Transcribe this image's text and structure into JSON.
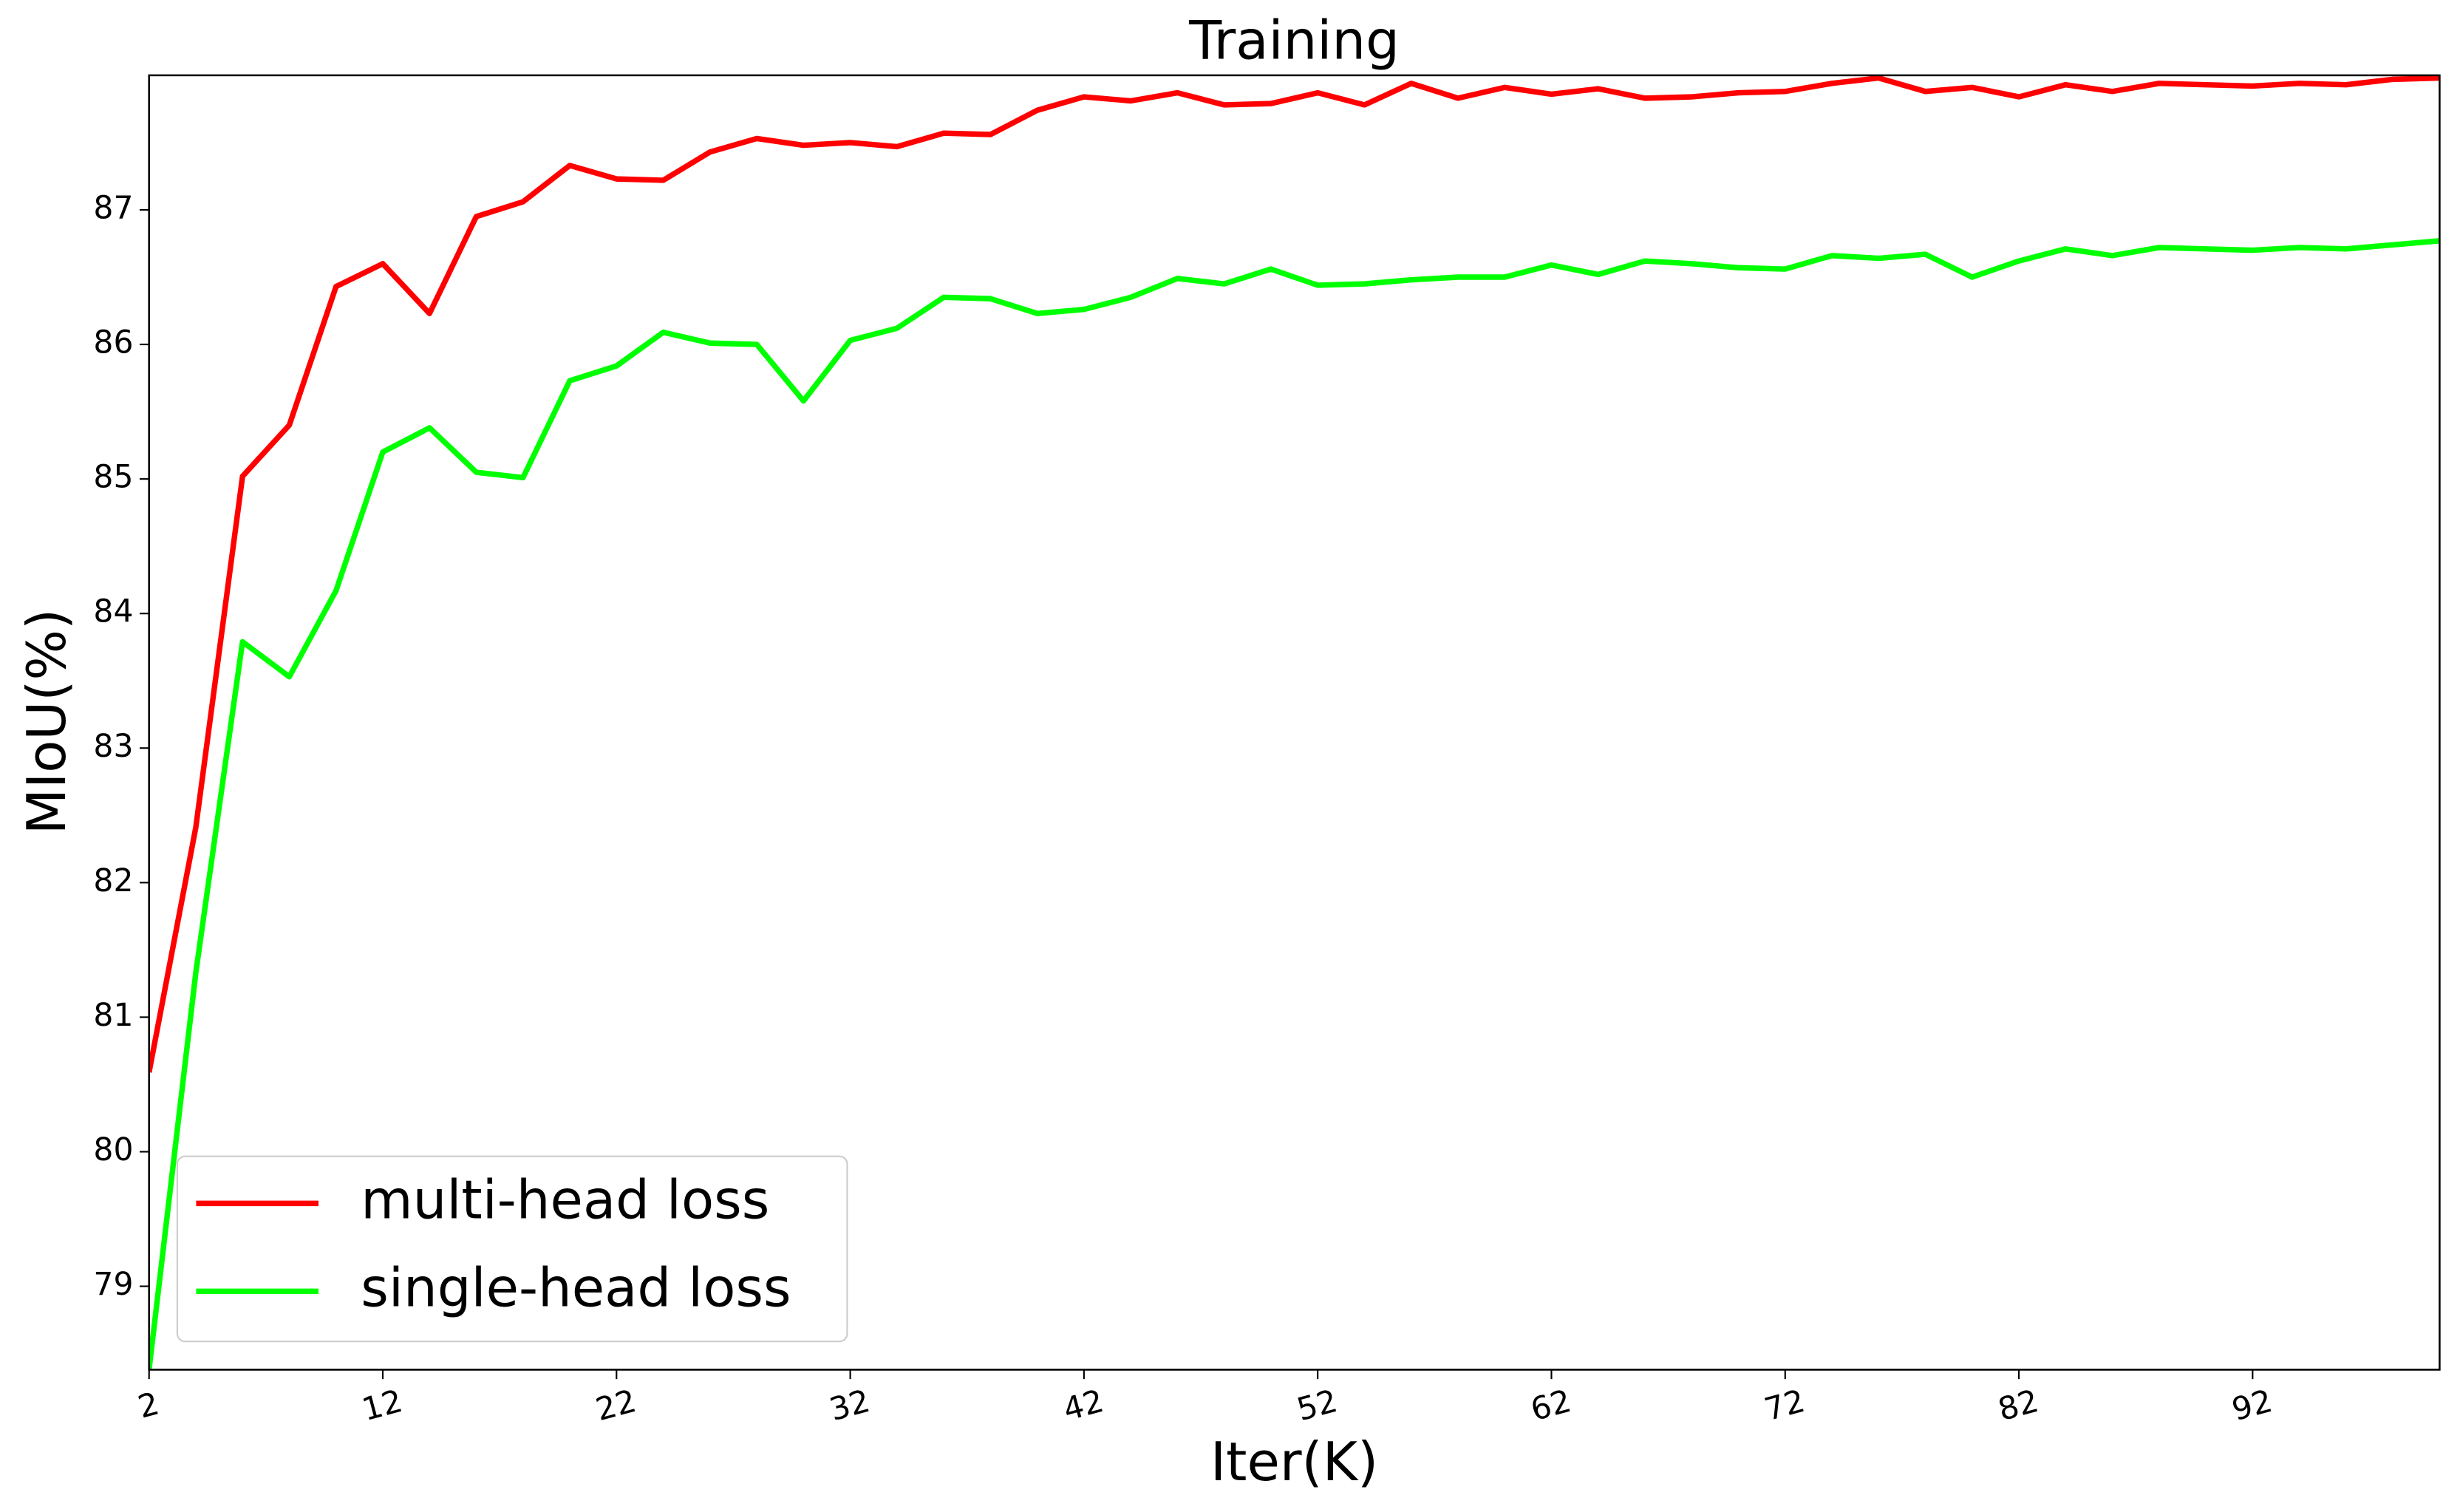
{
  "chart_data": {
    "type": "line",
    "title": "Training",
    "x_label": "Iter(K)",
    "y_label": "MIoU(%)",
    "x": [
      2,
      4,
      6,
      8,
      10,
      12,
      14,
      16,
      18,
      20,
      22,
      24,
      26,
      28,
      30,
      32,
      34,
      36,
      38,
      40,
      42,
      44,
      46,
      48,
      50,
      52,
      54,
      56,
      58,
      60,
      62,
      64,
      66,
      68,
      70,
      72,
      74,
      76,
      78,
      80,
      82,
      84,
      86,
      88,
      90,
      92,
      94,
      96,
      98,
      100
    ],
    "series": [
      {
        "name": "multi-head loss",
        "color": "#ff0000",
        "values": [
          80.59,
          82.41,
          85.02,
          85.4,
          86.43,
          86.6,
          86.23,
          86.95,
          87.06,
          87.33,
          87.23,
          87.22,
          87.43,
          87.53,
          87.48,
          87.5,
          87.47,
          87.57,
          87.56,
          87.74,
          87.84,
          87.81,
          87.87,
          87.78,
          87.79,
          87.87,
          87.78,
          87.94,
          87.83,
          87.91,
          87.86,
          87.9,
          87.83,
          87.84,
          87.87,
          87.88,
          87.94,
          87.98,
          87.88,
          87.91,
          87.84,
          87.93,
          87.88,
          87.94,
          87.93,
          87.92,
          87.94,
          87.93,
          87.97,
          87.98
        ]
      },
      {
        "name": "single-head loss",
        "color": "#00ff00",
        "values": [
          78.38,
          81.33,
          83.79,
          83.53,
          84.17,
          85.2,
          85.38,
          85.05,
          85.01,
          85.73,
          85.84,
          86.09,
          86.01,
          86.0,
          85.58,
          86.03,
          86.12,
          86.35,
          86.34,
          86.23,
          86.26,
          86.35,
          86.49,
          86.45,
          86.56,
          86.44,
          86.45,
          86.48,
          86.5,
          86.5,
          86.59,
          86.52,
          86.62,
          86.6,
          86.57,
          86.56,
          86.66,
          86.64,
          86.67,
          86.5,
          86.62,
          86.71,
          86.66,
          86.72,
          86.71,
          86.7,
          86.72,
          86.71,
          86.74,
          86.77
        ]
      }
    ],
    "xlim": [
      2,
      100
    ],
    "ylim": [
      78.38,
      88
    ],
    "xticks": [
      2,
      12,
      22,
      32,
      42,
      52,
      62,
      72,
      82,
      92
    ],
    "yticks": [
      79,
      80,
      81,
      82,
      83,
      84,
      85,
      86,
      87
    ],
    "legend": "lower left",
    "grid": false
  }
}
